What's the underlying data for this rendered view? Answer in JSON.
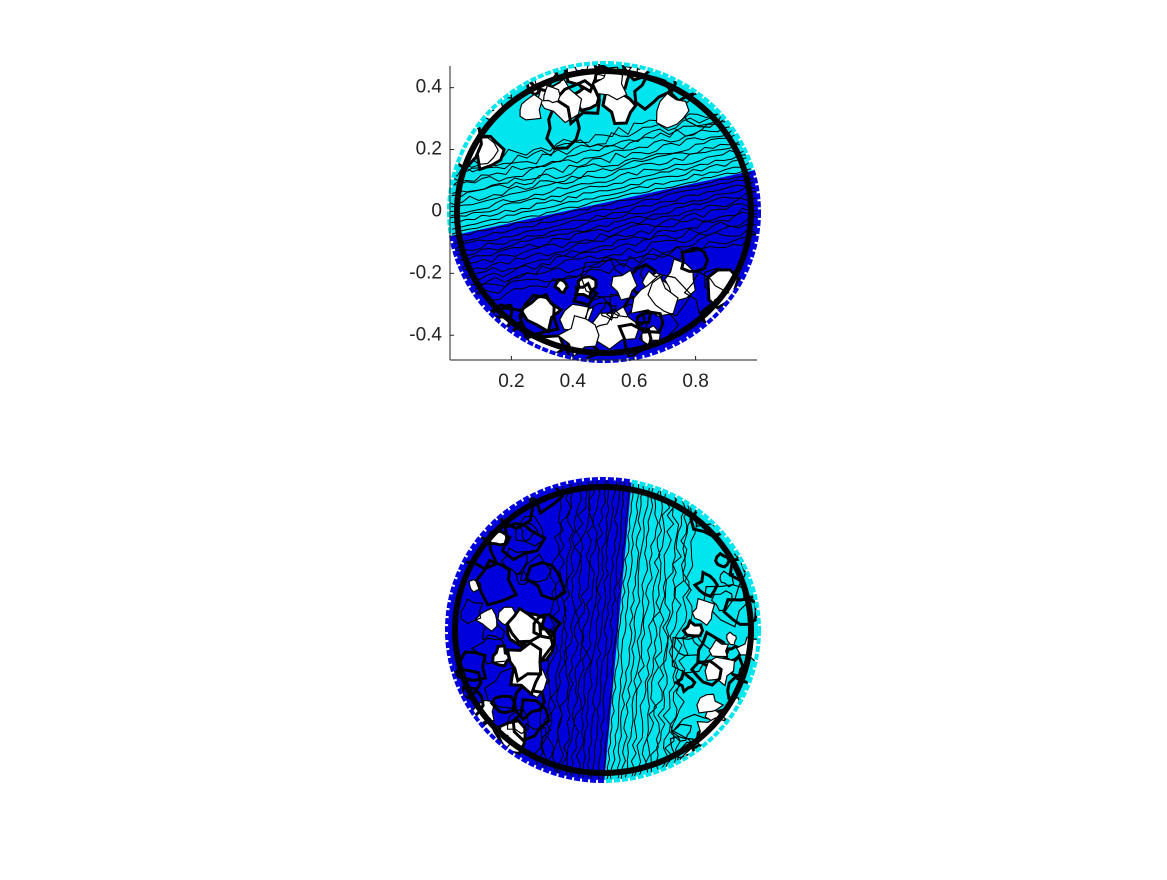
{
  "chart_data": [
    {
      "type": "contour",
      "axes": true,
      "xlim": [
        0,
        1
      ],
      "ylim": [
        -0.48,
        0.47
      ],
      "xticks": [
        0.2,
        0.4,
        0.6,
        0.8
      ],
      "yticks": [
        -0.4,
        -0.2,
        0,
        0.2,
        0.4
      ],
      "colors": [
        "#00e5ee",
        "#0000dd"
      ]
    },
    {
      "type": "contour",
      "axes": false,
      "colors": [
        "#00e5ee",
        "#0000dd"
      ]
    }
  ]
}
